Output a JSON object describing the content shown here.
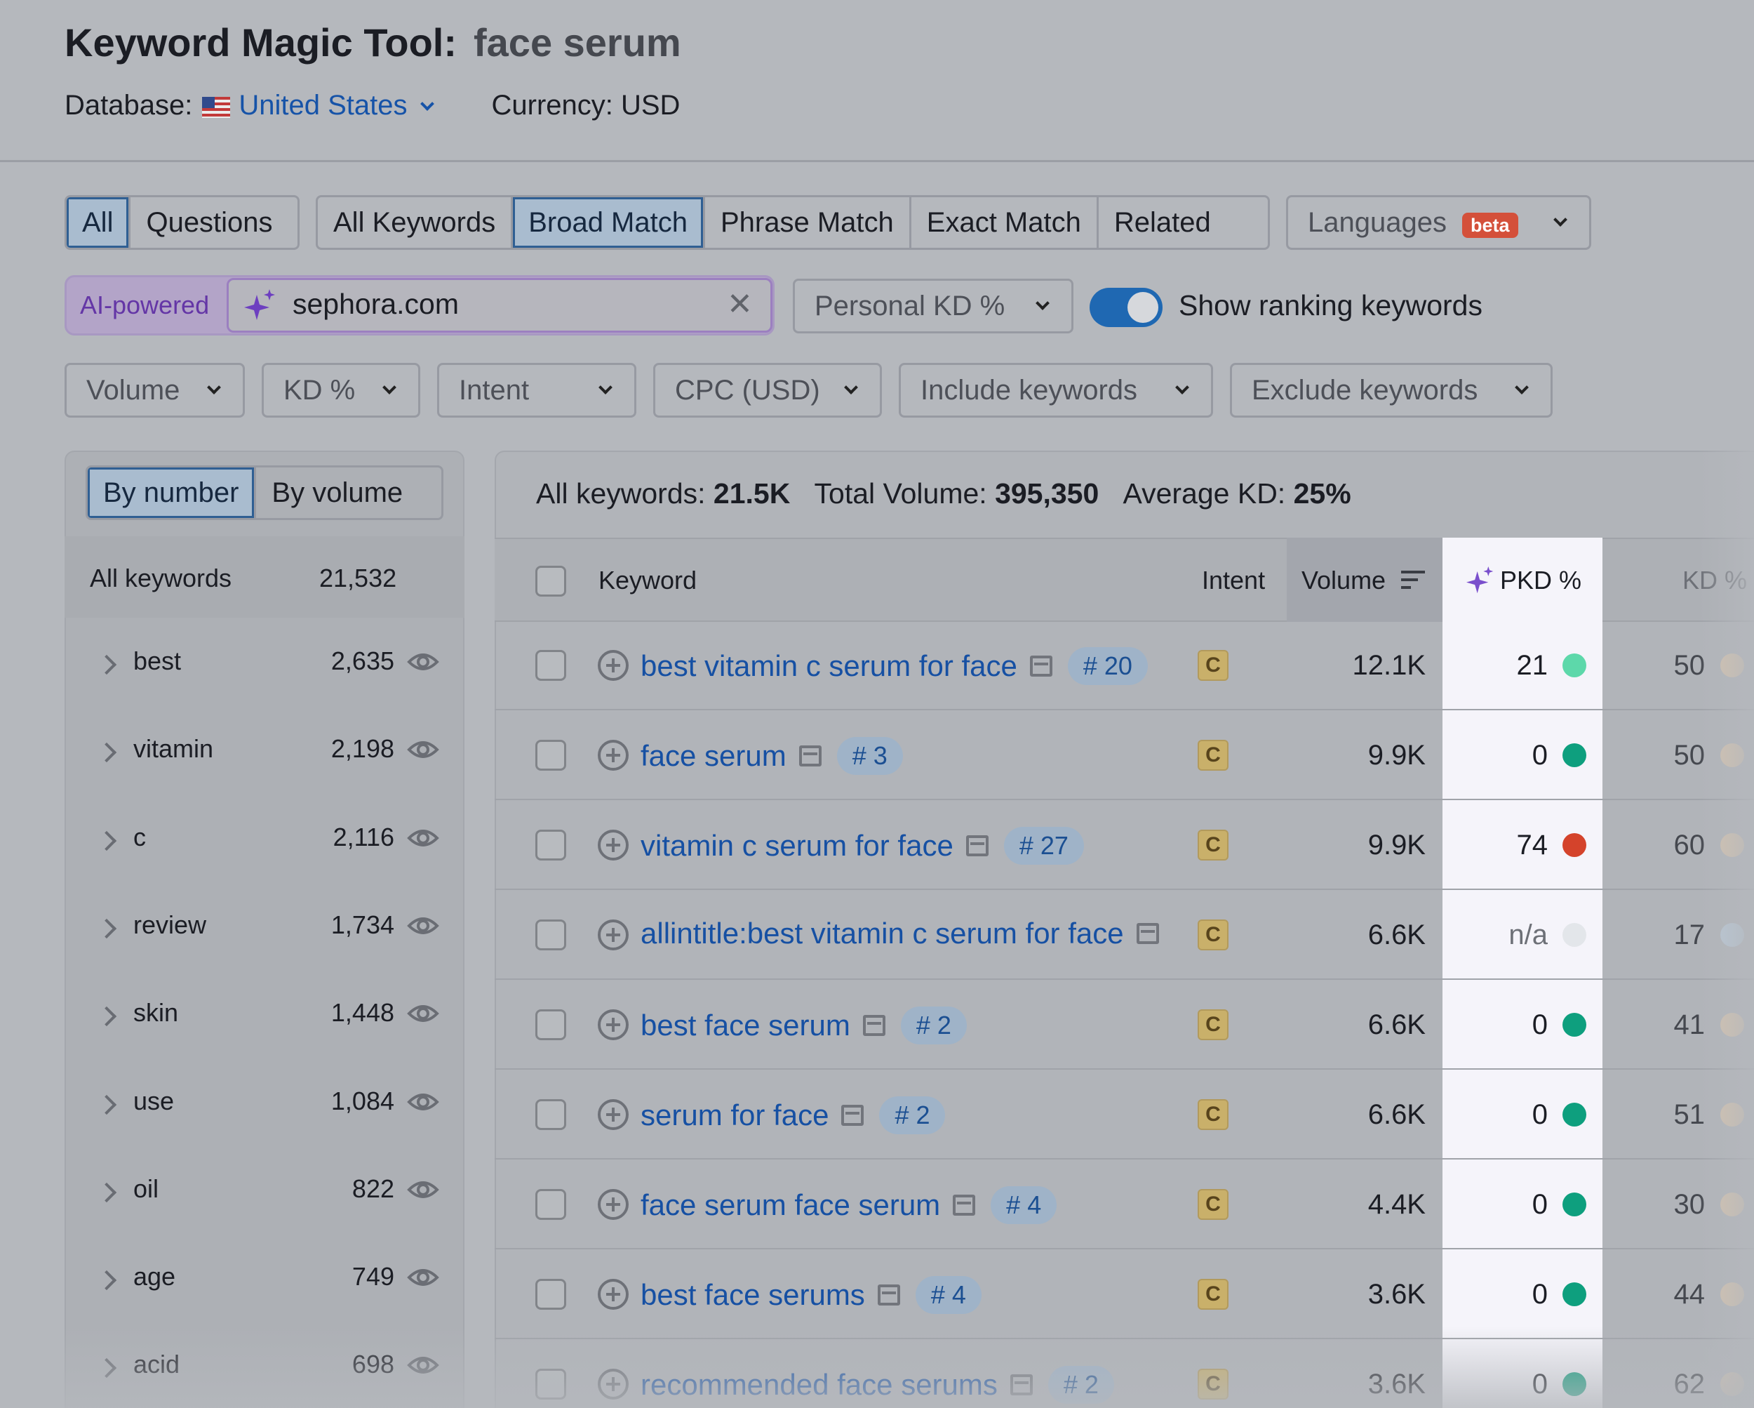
{
  "header": {
    "title": "Keyword Magic Tool:",
    "query": "face serum",
    "database_label": "Database:",
    "database_value": "United States",
    "currency": "Currency: USD"
  },
  "tabs_scope": [
    "All",
    "Questions"
  ],
  "tabs_match": [
    "All Keywords",
    "Broad Match",
    "Phrase Match",
    "Exact Match",
    "Related"
  ],
  "languages": {
    "label": "Languages",
    "badge": "beta"
  },
  "ai": {
    "label": "AI-powered",
    "domain": "sephora.com"
  },
  "personal_kd": "Personal KD %",
  "show_ranking": {
    "label": "Show ranking keywords",
    "enabled": true
  },
  "filters": [
    "Volume",
    "KD %",
    "Intent",
    "CPC (USD)",
    "Include keywords",
    "Exclude keywords"
  ],
  "sidebar": {
    "modes": [
      "By number",
      "By volume"
    ],
    "all_label": "All keywords",
    "all_count": "21,532",
    "groups": [
      {
        "label": "best",
        "count": "2,635"
      },
      {
        "label": "vitamin",
        "count": "2,198"
      },
      {
        "label": "c",
        "count": "2,116"
      },
      {
        "label": "review",
        "count": "1,734"
      },
      {
        "label": "skin",
        "count": "1,448"
      },
      {
        "label": "use",
        "count": "1,084"
      },
      {
        "label": "oil",
        "count": "822"
      },
      {
        "label": "age",
        "count": "749"
      },
      {
        "label": "acid",
        "count": "698"
      }
    ]
  },
  "summary": {
    "all_keywords_label": "All keywords:",
    "all_keywords_value": "21.5K",
    "total_volume_label": "Total Volume:",
    "total_volume_value": "395,350",
    "avg_kd_label": "Average KD:",
    "avg_kd_value": "25%"
  },
  "table": {
    "columns": [
      "Keyword",
      "Intent",
      "Volume",
      "PKD %",
      "KD %"
    ],
    "rows": [
      {
        "keyword": "best vitamin c serum for face",
        "pos": "# 20",
        "intent": "C",
        "volume": "12.1K",
        "pkd": "21",
        "pkd_color": "#5dd8aa",
        "kd": "50",
        "kd_color": "#e3c9a9"
      },
      {
        "keyword": "face serum",
        "pos": "# 3",
        "intent": "C",
        "volume": "9.9K",
        "pkd": "0",
        "pkd_color": "#0e9f7e",
        "kd": "50",
        "kd_color": "#e3c9a9"
      },
      {
        "keyword": "vitamin c serum for face",
        "pos": "# 27",
        "intent": "C",
        "volume": "9.9K",
        "pkd": "74",
        "pkd_color": "#d4432b",
        "kd": "60",
        "kd_color": "#e3c9a9"
      },
      {
        "keyword": "allintitle:best vitamin c serum for face",
        "pos": "",
        "intent": "C",
        "volume": "6.6K",
        "pkd": "n/a",
        "pkd_color": "#e3e6ea",
        "kd": "17",
        "kd_color": "#bcd0e2"
      },
      {
        "keyword": "best face serum",
        "pos": "# 2",
        "intent": "C",
        "volume": "6.6K",
        "pkd": "0",
        "pkd_color": "#0e9f7e",
        "kd": "41",
        "kd_color": "#e3c9a9"
      },
      {
        "keyword": "serum for face",
        "pos": "# 2",
        "intent": "C",
        "volume": "6.6K",
        "pkd": "0",
        "pkd_color": "#0e9f7e",
        "kd": "51",
        "kd_color": "#e3c9a9"
      },
      {
        "keyword": "face serum face serum",
        "pos": "# 4",
        "intent": "C",
        "volume": "4.4K",
        "pkd": "0",
        "pkd_color": "#0e9f7e",
        "kd": "30",
        "kd_color": "#e3c9a9"
      },
      {
        "keyword": "best face serums",
        "pos": "# 4",
        "intent": "C",
        "volume": "3.6K",
        "pkd": "0",
        "pkd_color": "#0e9f7e",
        "kd": "44",
        "kd_color": "#e3c9a9"
      },
      {
        "keyword": "recommended face serums",
        "pos": "# 2",
        "intent": "C",
        "volume": "3.6K",
        "pkd": "0",
        "pkd_color": "#0e9f7e",
        "kd": "62",
        "kd_color": "#e3c9a9"
      }
    ]
  }
}
